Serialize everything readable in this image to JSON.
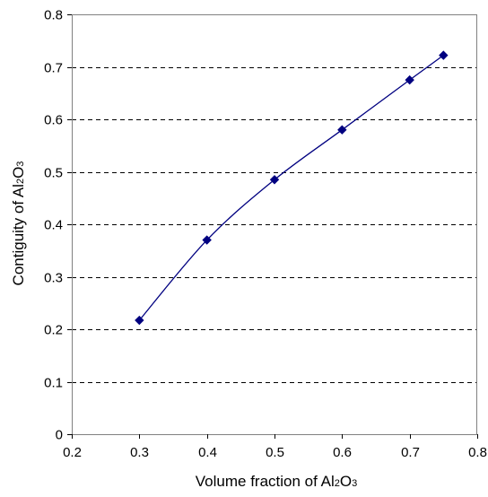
{
  "chart_data": {
    "type": "line",
    "title": "",
    "xlabel": {
      "prefix": "Volume fraction of Al",
      "sub1": "2",
      "mid": "O",
      "sub2": "3"
    },
    "ylabel": {
      "prefix": "Contiguity of Al",
      "sub1": "2",
      "mid": "O",
      "sub2": "3"
    },
    "xlim": [
      0.2,
      0.8
    ],
    "ylim": [
      0,
      0.8
    ],
    "xticks": [
      "0.2",
      "0.3",
      "0.4",
      "0.5",
      "0.6",
      "0.7",
      "0.8"
    ],
    "yticks": [
      "0",
      "0.1",
      "0.2",
      "0.3",
      "0.4",
      "0.5",
      "0.6",
      "0.7",
      "0.8"
    ],
    "grid": "horizontal-dashed",
    "legend": "none",
    "series": [
      {
        "x": [
          0.3,
          0.4,
          0.5,
          0.6,
          0.7,
          0.75
        ],
        "y": [
          0.217,
          0.37,
          0.485,
          0.58,
          0.675,
          0.722
        ],
        "marker": "diamond",
        "smooth": true,
        "color": "#000080"
      }
    ],
    "colors": {
      "grid": "#000000",
      "axis": "#808080"
    }
  }
}
